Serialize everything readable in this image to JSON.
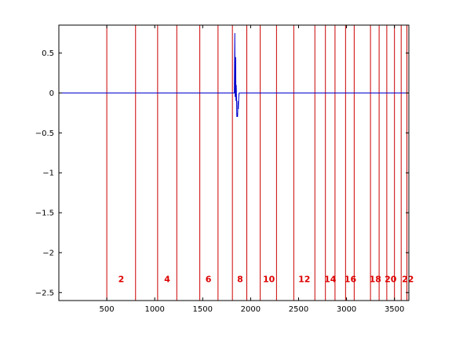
{
  "chart_data": {
    "type": "line",
    "title": "",
    "xlabel": "",
    "ylabel": "",
    "xlim": [
      0,
      3650
    ],
    "ylim": [
      -2.6,
      0.85
    ],
    "grid": false,
    "legend": "none",
    "x_ticks": [
      500,
      1000,
      1500,
      2000,
      2500,
      3000,
      3500
    ],
    "y_ticks": [
      0.5,
      0,
      -0.5,
      -1,
      -1.5,
      -2,
      -2.5
    ],
    "y_tick_labels": [
      "0.5",
      "0",
      "−0.5",
      "−1",
      "−1.5",
      "−2",
      "−2.5"
    ],
    "series": [
      {
        "color": "#0000cc",
        "x": [
          0,
          1830,
          1835,
          1838,
          1841,
          1844,
          1847,
          1850,
          1853,
          1856,
          1860,
          1864,
          1868,
          1872,
          1876,
          1880,
          3650
        ],
        "y": [
          0,
          0,
          0.75,
          -0.05,
          0.2,
          0.45,
          -0.1,
          0.1,
          -0.05,
          -0.3,
          -0.25,
          -0.3,
          -0.1,
          -0.2,
          -0.05,
          0,
          0
        ]
      }
    ],
    "segment_boundaries": [
      500,
      800,
      1030,
      1230,
      1470,
      1660,
      1810,
      1960,
      2100,
      2270,
      2450,
      2670,
      2780,
      2880,
      2990,
      3080,
      3250,
      3340,
      3420,
      3500,
      3570,
      3630
    ],
    "boundary_color": "#cc0000",
    "segment_labels": [
      {
        "text": "2",
        "x": 650
      },
      {
        "text": "4",
        "x": 1130
      },
      {
        "text": "6",
        "x": 1560
      },
      {
        "text": "8",
        "x": 1890
      },
      {
        "text": "10",
        "x": 2190
      },
      {
        "text": "12",
        "x": 2560
      },
      {
        "text": "14",
        "x": 2830
      },
      {
        "text": "16",
        "x": 3040
      },
      {
        "text": "18",
        "x": 3300
      },
      {
        "text": "20",
        "x": 3460
      },
      {
        "text": "22",
        "x": 3640
      }
    ],
    "segment_label_y": -2.33,
    "segment_label_color": "#dd0000"
  }
}
